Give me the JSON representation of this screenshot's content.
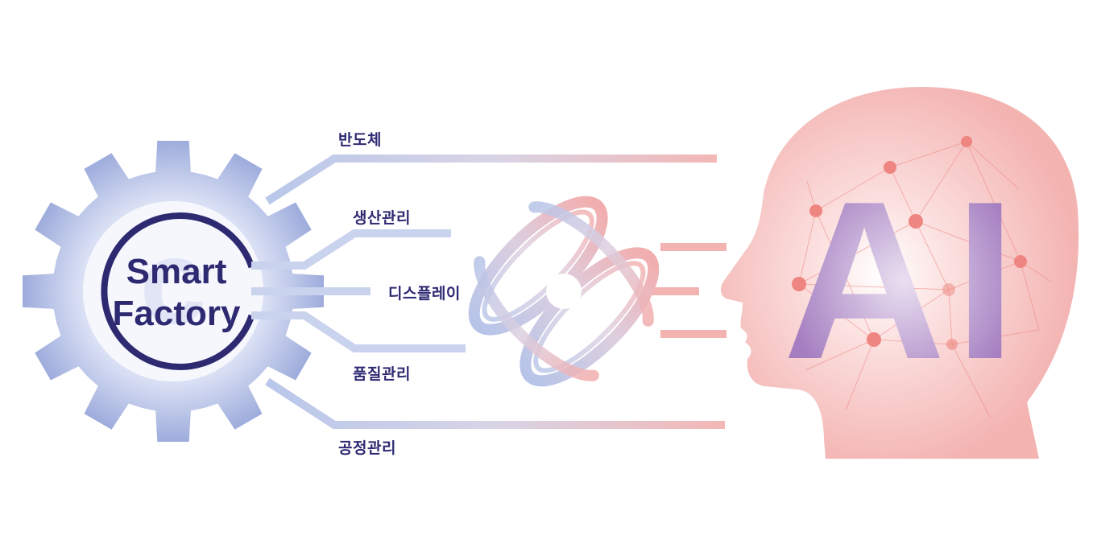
{
  "gear": {
    "line1": "Smart",
    "line2": "Factory"
  },
  "branches": [
    {
      "label": "반도체"
    },
    {
      "label": "생산관리"
    },
    {
      "label": "디스플레이"
    },
    {
      "label": "품질관리"
    },
    {
      "label": "공정관리"
    }
  ],
  "head": {
    "text": "AI"
  },
  "colors": {
    "navy": "#2e2a72",
    "gear_blue": "#a9b5e0",
    "gear_light": "#eef1fb",
    "pink": "#f4b4b2",
    "ai_purple": "#a07ac0",
    "node": "#ee8580"
  }
}
